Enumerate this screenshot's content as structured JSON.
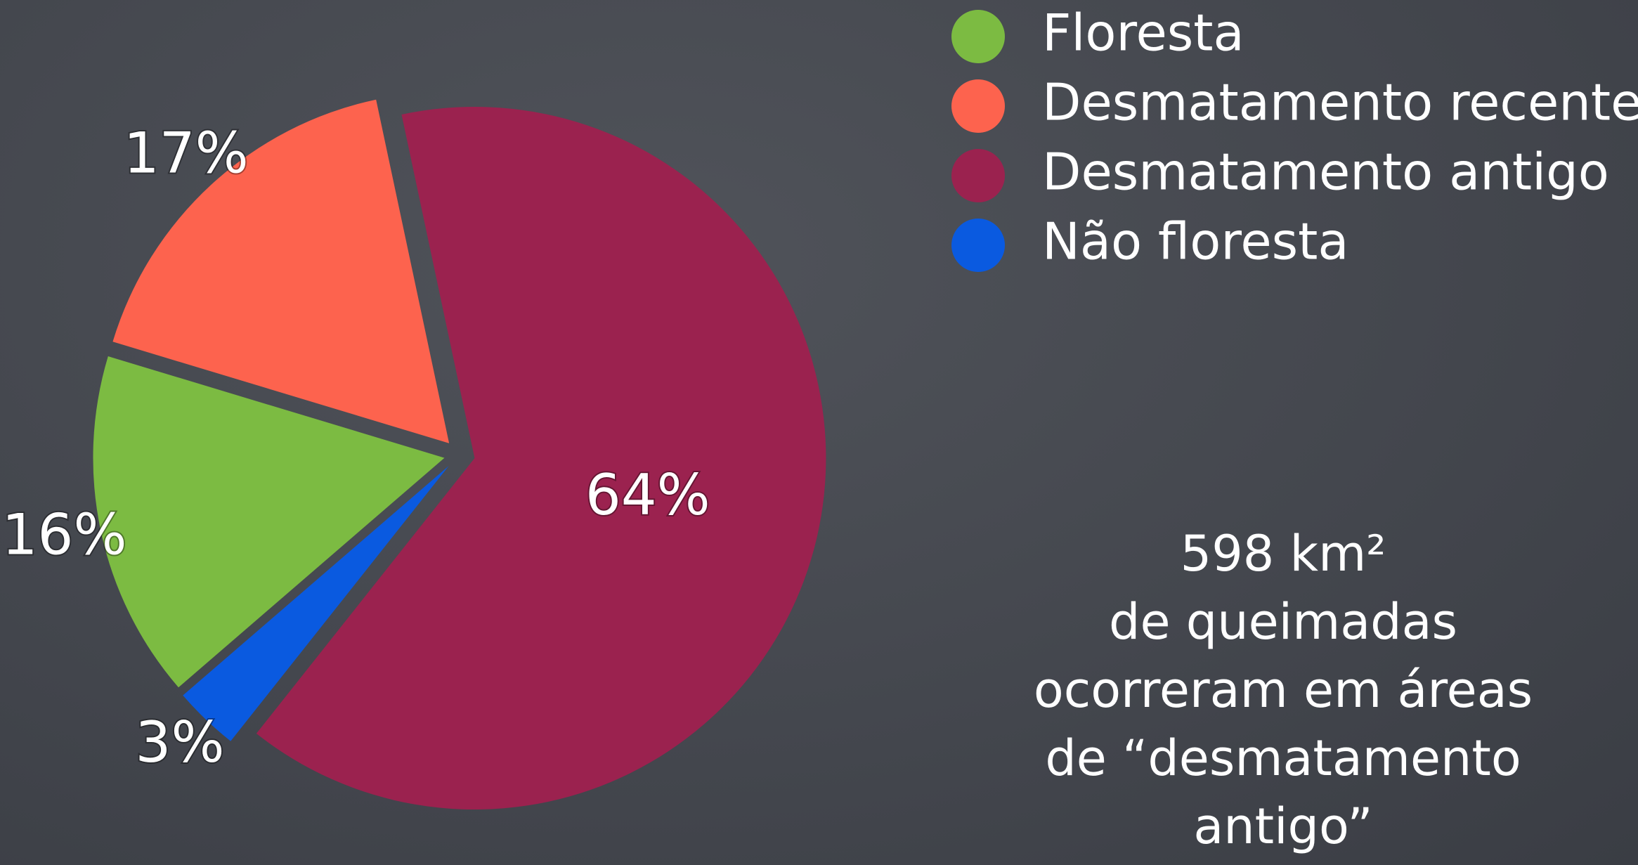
{
  "chart_data": {
    "type": "pie",
    "categories": [
      "Floresta",
      "Desmatamento recente",
      "Desmatamento antigo",
      "Não floresta"
    ],
    "values": [
      16,
      17,
      64,
      3
    ],
    "value_labels": [
      "16%",
      "17%",
      "64%",
      "3%"
    ],
    "colors": [
      "#7cbb42",
      "#fd634e",
      "#9b224f",
      "#0a5ae0"
    ],
    "legend": "top-right",
    "annotation": [
      "598 km²",
      "de queimadas",
      "ocorreram em áreas",
      "de “desmatamento",
      "antigo”"
    ]
  }
}
